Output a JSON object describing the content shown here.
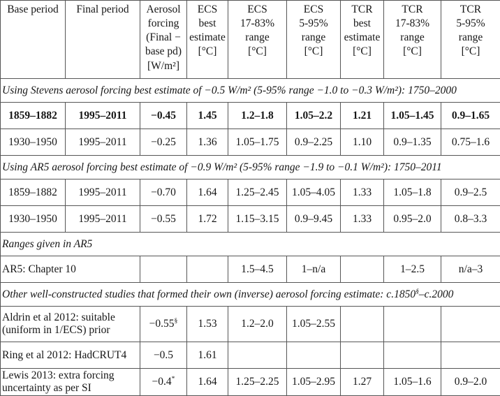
{
  "colors": {
    "background": "#ffffff",
    "border": "#565656",
    "text": "#161616"
  },
  "table": {
    "columns": [
      {
        "name": "base-period",
        "lines": [
          "Base period"
        ]
      },
      {
        "name": "final-period",
        "lines": [
          "Final period"
        ]
      },
      {
        "name": "aerosol-forcing",
        "lines": [
          "Aerosol",
          "forcing",
          "(Final −",
          "base pd)",
          "[W/m²]"
        ]
      },
      {
        "name": "ecs-best-estimate",
        "lines": [
          "ECS",
          "best",
          "estimate",
          "[°C]"
        ]
      },
      {
        "name": "ecs-17-83-range",
        "lines": [
          "ECS",
          "17-83%",
          "range",
          "[°C]"
        ]
      },
      {
        "name": "ecs-5-95-range",
        "lines": [
          "ECS",
          "5-95%",
          "range",
          "[°C]"
        ]
      },
      {
        "name": "tcr-best-estimate",
        "lines": [
          "TCR",
          "best",
          "estimate",
          "[°C]"
        ]
      },
      {
        "name": "tcr-17-83-range",
        "lines": [
          "TCR",
          "17-83%",
          "range",
          "[°C]"
        ]
      },
      {
        "name": "tcr-5-95-range",
        "lines": [
          "TCR",
          "5-95%",
          "range",
          "[°C]"
        ]
      }
    ],
    "rows": [
      {
        "kind": "section",
        "segments": [
          {
            "t": "Using Stevens aerosol forcing best estimate of −0.5 W/m² (5-95% range −1.0 to −0.3 W/m²): 1750–2000"
          }
        ]
      },
      {
        "kind": "data",
        "bold": true,
        "cells": [
          {
            "t": "1859–1882"
          },
          {
            "t": "1995–2011"
          },
          {
            "t": "−0.45"
          },
          {
            "t": "1.45"
          },
          {
            "t": "1.2–1.8"
          },
          {
            "t": "1.05–2.2"
          },
          {
            "t": "1.21"
          },
          {
            "t": "1.05–1.45"
          },
          {
            "t": "0.9–1.65"
          }
        ]
      },
      {
        "kind": "data",
        "bold": false,
        "cells": [
          {
            "t": "1930–1950"
          },
          {
            "t": "1995–2011"
          },
          {
            "t": "−0.25"
          },
          {
            "t": "1.36"
          },
          {
            "t": "1.05–1.75"
          },
          {
            "t": "0.9–2.25"
          },
          {
            "t": "1.10"
          },
          {
            "t": "0.9–1.35"
          },
          {
            "t": "0.75–1.6"
          }
        ]
      },
      {
        "kind": "section",
        "segments": [
          {
            "t": "Using AR5 aerosol forcing best estimate of −0.9 W/m² (5-95% range −1.9 to −0.1 W/m²): 1750–2011"
          }
        ]
      },
      {
        "kind": "data",
        "bold": false,
        "cells": [
          {
            "t": "1859–1882"
          },
          {
            "t": "1995–2011"
          },
          {
            "t": "−0.70"
          },
          {
            "t": "1.64"
          },
          {
            "t": "1.25–2.45"
          },
          {
            "t": "1.05–4.05"
          },
          {
            "t": "1.33"
          },
          {
            "t": "1.05–1.8"
          },
          {
            "t": "0.9–2.5"
          }
        ]
      },
      {
        "kind": "data",
        "bold": false,
        "cells": [
          {
            "t": "1930–1950"
          },
          {
            "t": "1995–2011"
          },
          {
            "t": "−0.55"
          },
          {
            "t": "1.72"
          },
          {
            "t": "1.15–3.15"
          },
          {
            "t": "0.9–9.45"
          },
          {
            "t": "1.33"
          },
          {
            "t": "0.95–2.0"
          },
          {
            "t": "0.8–3.3"
          }
        ]
      },
      {
        "kind": "section",
        "segments": [
          {
            "t": "Ranges given in AR5"
          }
        ]
      },
      {
        "kind": "data",
        "bold": false,
        "cells": [
          {
            "t": "AR5: Chapter 10",
            "colspan": 2,
            "label": true
          },
          {
            "t": ""
          },
          {
            "t": ""
          },
          {
            "t": "1.5–4.5"
          },
          {
            "t": "1–n/a"
          },
          {
            "t": ""
          },
          {
            "t": "1–2.5"
          },
          {
            "t": "n/a–3"
          }
        ]
      },
      {
        "kind": "section",
        "segments": [
          {
            "t": "Other well-constructed studies that formed their own (inverse) aerosol forcing estimate: c.1850"
          },
          {
            "t": "§",
            "sup": true
          },
          {
            "t": "–c.2000"
          }
        ]
      },
      {
        "kind": "data",
        "bold": false,
        "cells": [
          {
            "t": "Aldrin et al 2012: suitable (uniform in 1/ECS) prior",
            "colspan": 2,
            "label": true
          },
          {
            "t": "−0.55",
            "sup": "§"
          },
          {
            "t": "1.53"
          },
          {
            "t": "1.2–2.0"
          },
          {
            "t": "1.05–2.55"
          },
          {
            "t": ""
          },
          {
            "t": ""
          },
          {
            "t": ""
          }
        ]
      },
      {
        "kind": "data",
        "bold": false,
        "cells": [
          {
            "t": "Ring et al 2012: HadCRUT4",
            "colspan": 2,
            "label": true
          },
          {
            "t": "−0.5"
          },
          {
            "t": "1.61"
          },
          {
            "t": ""
          },
          {
            "t": ""
          },
          {
            "t": ""
          },
          {
            "t": ""
          },
          {
            "t": ""
          }
        ]
      },
      {
        "kind": "data",
        "bold": false,
        "cells": [
          {
            "t": "Lewis 2013: extra forcing uncertainty as per SI",
            "colspan": 2,
            "label": true
          },
          {
            "t": "−0.4",
            "sup": "*"
          },
          {
            "t": "1.64"
          },
          {
            "t": "1.25–2.25"
          },
          {
            "t": "1.05–2.95"
          },
          {
            "t": "1.27"
          },
          {
            "t": "1.05–1.6"
          },
          {
            "t": "0.9–2.0"
          }
        ]
      }
    ]
  }
}
